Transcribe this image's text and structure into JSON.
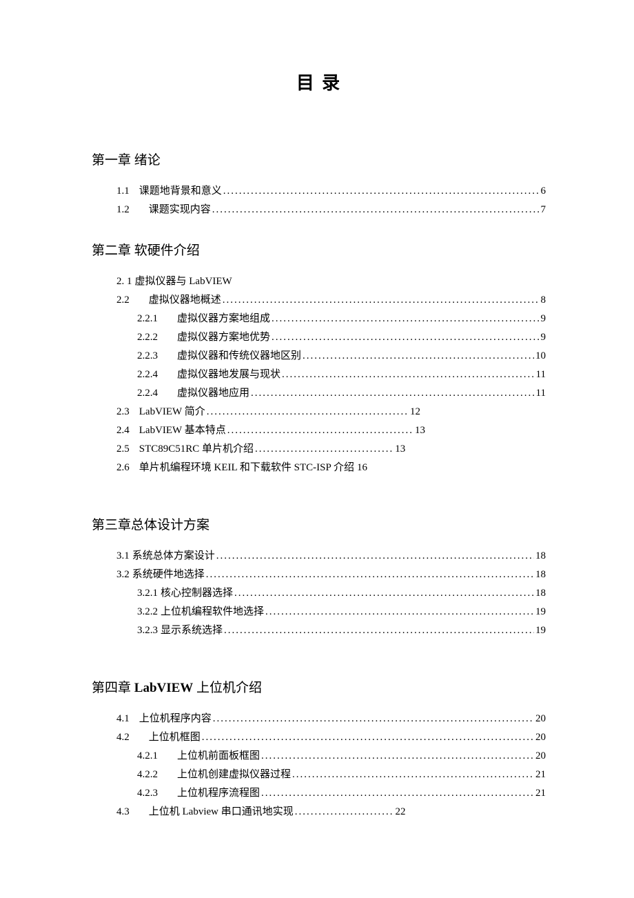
{
  "title": "目 录",
  "chapters": [
    {
      "heading": "第一章 绪论",
      "headingBold": false,
      "entries": [
        {
          "level": 1,
          "num": "1.1",
          "label": "课题地背景和意义",
          "page": "6",
          "spacing": "normal"
        },
        {
          "level": 1,
          "num": "1.2",
          "label": "课题实现内容",
          "page": "7",
          "spacing": "wide"
        }
      ]
    },
    {
      "heading": "第二章 软硬件介绍",
      "headingBold": false,
      "entries": [
        {
          "level": 1,
          "num": "2. 1",
          "label": "虚拟仪器与 LabVIEW",
          "page": "",
          "spacing": "tight",
          "noleader": true
        },
        {
          "level": 1,
          "num": "2.2",
          "label": "虚拟仪器地概述",
          "page": "8",
          "spacing": "wide"
        },
        {
          "level": 2,
          "num": "2.2.1",
          "label": "虚拟仪器方案地组成",
          "page": "9",
          "spacing": "wide"
        },
        {
          "level": 2,
          "num": "2.2.2",
          "label": "虚拟仪器方案地优势",
          "page": "9",
          "spacing": "wide"
        },
        {
          "level": 2,
          "num": "2.2.3",
          "label": "虚拟仪器和传统仪器地区别",
          "page": "10",
          "spacing": "wide"
        },
        {
          "level": 2,
          "num": "2.2.4",
          "label": "虚拟仪器地发展与现状",
          "page": "11",
          "spacing": "wide"
        },
        {
          "level": 2,
          "num": "2.2.4",
          "label": "虚拟仪器地应用",
          "page": "11",
          "spacing": "wide"
        },
        {
          "level": 1,
          "num": "2.3",
          "label": "LabVIEW 简介",
          "page": "12",
          "spacing": "normal",
          "short": true,
          "shortDots": "..................................................."
        },
        {
          "level": 1,
          "num": "2.4",
          "label": "LabVIEW 基本特点",
          "page": "13",
          "spacing": "normal",
          "short": true,
          "shortDots": "..............................................."
        },
        {
          "level": 1,
          "num": "2.5",
          "label": "STC89C51RC 单片机介绍",
          "page": "13",
          "spacing": "normal",
          "short": true,
          "shortDots": "..................................."
        },
        {
          "level": 1,
          "num": "2.6",
          "label": "单片机编程环境 KEIL 和下载软件 STC-ISP 介绍",
          "page": "16",
          "spacing": "normal",
          "short": true,
          "shortDots": " "
        }
      ]
    },
    {
      "heading": "第三章总体设计方案",
      "headingBold": false,
      "gapBefore": true,
      "entries": [
        {
          "level": 1,
          "num": "3.1",
          "label": "系统总体方案设计",
          "page": "18",
          "spacing": "tight"
        },
        {
          "level": 1,
          "num": "3.2",
          "label": "系统硬件地选择",
          "page": "18",
          "spacing": "tight"
        },
        {
          "level": 2,
          "num": "3.2.1",
          "label": "核心控制器选择",
          "page": "18",
          "spacing": "tight"
        },
        {
          "level": 2,
          "num": "3.2.2",
          "label": "上位机编程软件地选择",
          "page": "19",
          "spacing": "tight"
        },
        {
          "level": 2,
          "num": "3.2.3",
          "label": "显示系统选择",
          "page": "19",
          "spacing": "tight"
        }
      ]
    },
    {
      "heading": "第四章 LabVIEW 上位机介绍",
      "headingBold": true,
      "boldPart": "LabVIEW",
      "beforeBold": "第四章 ",
      "afterBold": " 上位机介绍",
      "gapBefore": true,
      "entries": [
        {
          "level": 1,
          "num": "4.1",
          "label": "上位机程序内容",
          "page": "20",
          "spacing": "normal"
        },
        {
          "level": 1,
          "num": "4.2",
          "label": "上位机框图",
          "page": "20",
          "spacing": "wide"
        },
        {
          "level": 2,
          "num": "4.2.1",
          "label": "上位机前面板框图",
          "page": "20",
          "spacing": "wide"
        },
        {
          "level": 2,
          "num": "4.2.2",
          "label": "上位机创建虚拟仪器过程",
          "page": "21",
          "spacing": "wide"
        },
        {
          "level": 2,
          "num": "4.2.3",
          "label": "上位机程序流程图",
          "page": "21",
          "spacing": "wide"
        },
        {
          "level": 1,
          "num": "4.3",
          "label": "上位机 Labview 串口通讯地实现",
          "page": "22",
          "spacing": "wide",
          "short": true,
          "shortDots": "........................."
        }
      ]
    }
  ]
}
